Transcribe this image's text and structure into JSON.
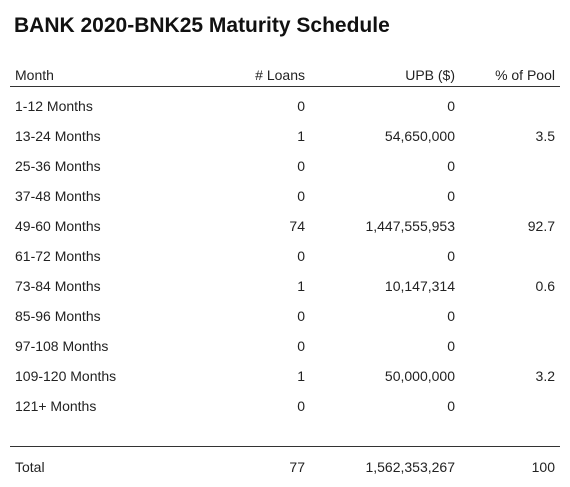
{
  "title": "BANK 2020-BNK25 Maturity Schedule",
  "columns": {
    "month": "Month",
    "loans": "# Loans",
    "upb": "UPB ($)",
    "pct": "% of Pool"
  },
  "rows": [
    {
      "month": "1-12 Months",
      "loans": "0",
      "upb": "0",
      "pct": ""
    },
    {
      "month": "13-24 Months",
      "loans": "1",
      "upb": "54,650,000",
      "pct": "3.5"
    },
    {
      "month": "25-36 Months",
      "loans": "0",
      "upb": "0",
      "pct": ""
    },
    {
      "month": "37-48 Months",
      "loans": "0",
      "upb": "0",
      "pct": ""
    },
    {
      "month": "49-60 Months",
      "loans": "74",
      "upb": "1,447,555,953",
      "pct": "92.7"
    },
    {
      "month": "61-72 Months",
      "loans": "0",
      "upb": "0",
      "pct": ""
    },
    {
      "month": "73-84 Months",
      "loans": "1",
      "upb": "10,147,314",
      "pct": "0.6"
    },
    {
      "month": "85-96 Months",
      "loans": "0",
      "upb": "0",
      "pct": ""
    },
    {
      "month": "97-108 Months",
      "loans": "0",
      "upb": "0",
      "pct": ""
    },
    {
      "month": "109-120 Months",
      "loans": "1",
      "upb": "50,000,000",
      "pct": "3.2"
    },
    {
      "month": "121+ Months",
      "loans": "0",
      "upb": "0",
      "pct": ""
    }
  ],
  "total": {
    "month": "Total",
    "loans": "77",
    "upb": "1,562,353,267",
    "pct": "100"
  }
}
